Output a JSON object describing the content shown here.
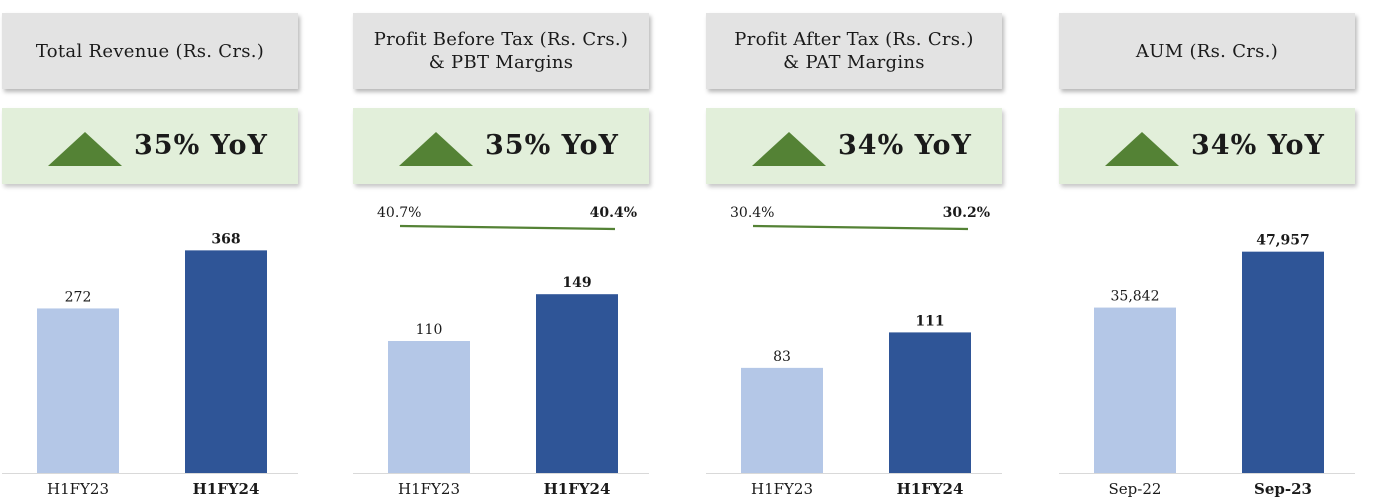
{
  "panels": [
    {
      "title": "Total Revenue (Rs. Crs.)",
      "yoy": "35% YoY"
    },
    {
      "title": "Profit Before Tax (Rs. Crs.)\n& PBT Margins",
      "yoy": "35% YoY"
    },
    {
      "title": "Profit After Tax (Rs. Crs.)\n& PAT Margins",
      "yoy": "34% YoY"
    },
    {
      "title": "AUM (Rs. Crs.)",
      "yoy": "34% YoY"
    }
  ],
  "colors": {
    "bar_prior": "#b4c7e7",
    "bar_current": "#2f5597",
    "margin_line": "#548235",
    "up_arrow": "#548235"
  },
  "chart_data": [
    {
      "type": "bar",
      "categories": [
        "H1FY23",
        "H1FY24"
      ],
      "values": [
        272,
        368
      ],
      "value_labels": [
        "272",
        "368"
      ],
      "ylim": [
        0,
        400
      ]
    },
    {
      "type": "bar",
      "categories": [
        "H1FY23",
        "H1FY24"
      ],
      "values": [
        110,
        149
      ],
      "value_labels": [
        "110",
        "149"
      ],
      "ylim": [
        0,
        200
      ],
      "margin_series": {
        "values": [
          40.7,
          40.4
        ],
        "labels": [
          "40.7%",
          "40.4%"
        ]
      }
    },
    {
      "type": "bar",
      "categories": [
        "H1FY23",
        "H1FY24"
      ],
      "values": [
        83,
        111
      ],
      "value_labels": [
        "83",
        "111"
      ],
      "ylim": [
        0,
        150
      ],
      "margin_series": {
        "values": [
          30.4,
          30.2
        ],
        "labels": [
          "30.4%",
          "30.2%"
        ]
      }
    },
    {
      "type": "bar",
      "categories": [
        "Sep-22",
        "Sep-23"
      ],
      "values": [
        35842,
        47957
      ],
      "value_labels": [
        "35,842",
        "47,957"
      ],
      "ylim": [
        0,
        52000
      ]
    }
  ]
}
